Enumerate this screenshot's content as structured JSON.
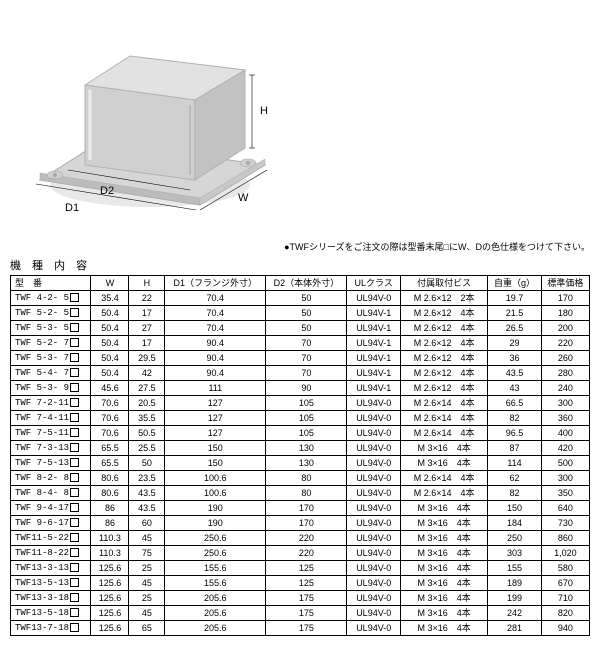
{
  "diagram": {
    "labels": {
      "H": "H",
      "D1": "D1",
      "D2": "D2",
      "W": "W"
    }
  },
  "section_label": "機  種  内  容",
  "note": "●TWFシリーズをご注文の際は型番末尾□にW、Dの色仕様をつけて下さい。",
  "table": {
    "headers": [
      "型　番",
      "W",
      "H",
      "D1（フランジ外寸）",
      "D2（本体外寸）",
      "ULクラス",
      "付属取付ビス",
      "自重（g）",
      "標準価格"
    ],
    "rows": [
      [
        "TWF 4-2- 5",
        "35.4",
        "22",
        "70.4",
        "50",
        "UL94V-0",
        "M 2.6×12　2本",
        "19.7",
        "170"
      ],
      [
        "TWF 5-2- 5",
        "50.4",
        "17",
        "70.4",
        "50",
        "UL94V-1",
        "M 2.6×12　4本",
        "21.5",
        "180"
      ],
      [
        "TWF 5-3- 5",
        "50.4",
        "27",
        "70.4",
        "50",
        "UL94V-1",
        "M 2.6×12　4本",
        "26.5",
        "200"
      ],
      [
        "TWF 5-2- 7",
        "50.4",
        "17",
        "90.4",
        "70",
        "UL94V-1",
        "M 2.6×12　4本",
        "29",
        "220"
      ],
      [
        "TWF 5-3- 7",
        "50.4",
        "29.5",
        "90.4",
        "70",
        "UL94V-1",
        "M 2.6×12　4本",
        "36",
        "260"
      ],
      [
        "TWF 5-4- 7",
        "50.4",
        "42",
        "90.4",
        "70",
        "UL94V-1",
        "M 2.6×12　4本",
        "43.5",
        "280"
      ],
      [
        "TWF 5-3- 9",
        "45.6",
        "27.5",
        "111",
        "90",
        "UL94V-1",
        "M 2.6×12　4本",
        "43",
        "240"
      ],
      [
        "TWF 7-2-11",
        "70.6",
        "20.5",
        "127",
        "105",
        "UL94V-0",
        "M 2.6×14　4本",
        "66.5",
        "300"
      ],
      [
        "TWF 7-4-11",
        "70.6",
        "35.5",
        "127",
        "105",
        "UL94V-0",
        "M 2.6×14　4本",
        "82",
        "360"
      ],
      [
        "TWF 7-5-11",
        "70.6",
        "50.5",
        "127",
        "105",
        "UL94V-0",
        "M 2.6×14　4本",
        "96.5",
        "400"
      ],
      [
        "TWF 7-3-13",
        "65.5",
        "25.5",
        "150",
        "130",
        "UL94V-0",
        "M 3×16　4本",
        "87",
        "420"
      ],
      [
        "TWF 7-5-13",
        "65.5",
        "50",
        "150",
        "130",
        "UL94V-0",
        "M 3×16　4本",
        "114",
        "500"
      ],
      [
        "TWF 8-2- 8",
        "80.6",
        "23.5",
        "100.6",
        "80",
        "UL94V-0",
        "M 2.6×14　4本",
        "62",
        "300"
      ],
      [
        "TWF 8-4- 8",
        "80.6",
        "43.5",
        "100.6",
        "80",
        "UL94V-0",
        "M 2.6×14　4本",
        "82",
        "350"
      ],
      [
        "TWF 9-4-17",
        "86",
        "43.5",
        "190",
        "170",
        "UL94V-0",
        "M 3×16　4本",
        "150",
        "640"
      ],
      [
        "TWF 9-6-17",
        "86",
        "60",
        "190",
        "170",
        "UL94V-0",
        "M 3×16　4本",
        "184",
        "730"
      ],
      [
        "TWF11-5-22",
        "110.3",
        "45",
        "250.6",
        "220",
        "UL94V-0",
        "M 3×16　4本",
        "250",
        "860"
      ],
      [
        "TWF11-8-22",
        "110.3",
        "75",
        "250.6",
        "220",
        "UL94V-0",
        "M 3×16　4本",
        "303",
        "1,020"
      ],
      [
        "TWF13-3-13",
        "125.6",
        "25",
        "155.6",
        "125",
        "UL94V-0",
        "M 3×16　4本",
        "155",
        "580"
      ],
      [
        "TWF13-5-13",
        "125.6",
        "45",
        "155.6",
        "125",
        "UL94V-0",
        "M 3×16　4本",
        "189",
        "670"
      ],
      [
        "TWF13-3-18",
        "125.6",
        "25",
        "205.6",
        "175",
        "UL94V-0",
        "M 3×16　4本",
        "199",
        "710"
      ],
      [
        "TWF13-5-18",
        "125.6",
        "45",
        "205.6",
        "175",
        "UL94V-0",
        "M 3×16　4本",
        "242",
        "820"
      ],
      [
        "TWF13-7-18",
        "125.6",
        "65",
        "205.6",
        "175",
        "UL94V-0",
        "M 3×16　4本",
        "281",
        "940"
      ]
    ],
    "col_widths": [
      "72",
      "34",
      "32",
      "76",
      "68",
      "48",
      "78",
      "42",
      "42"
    ]
  }
}
